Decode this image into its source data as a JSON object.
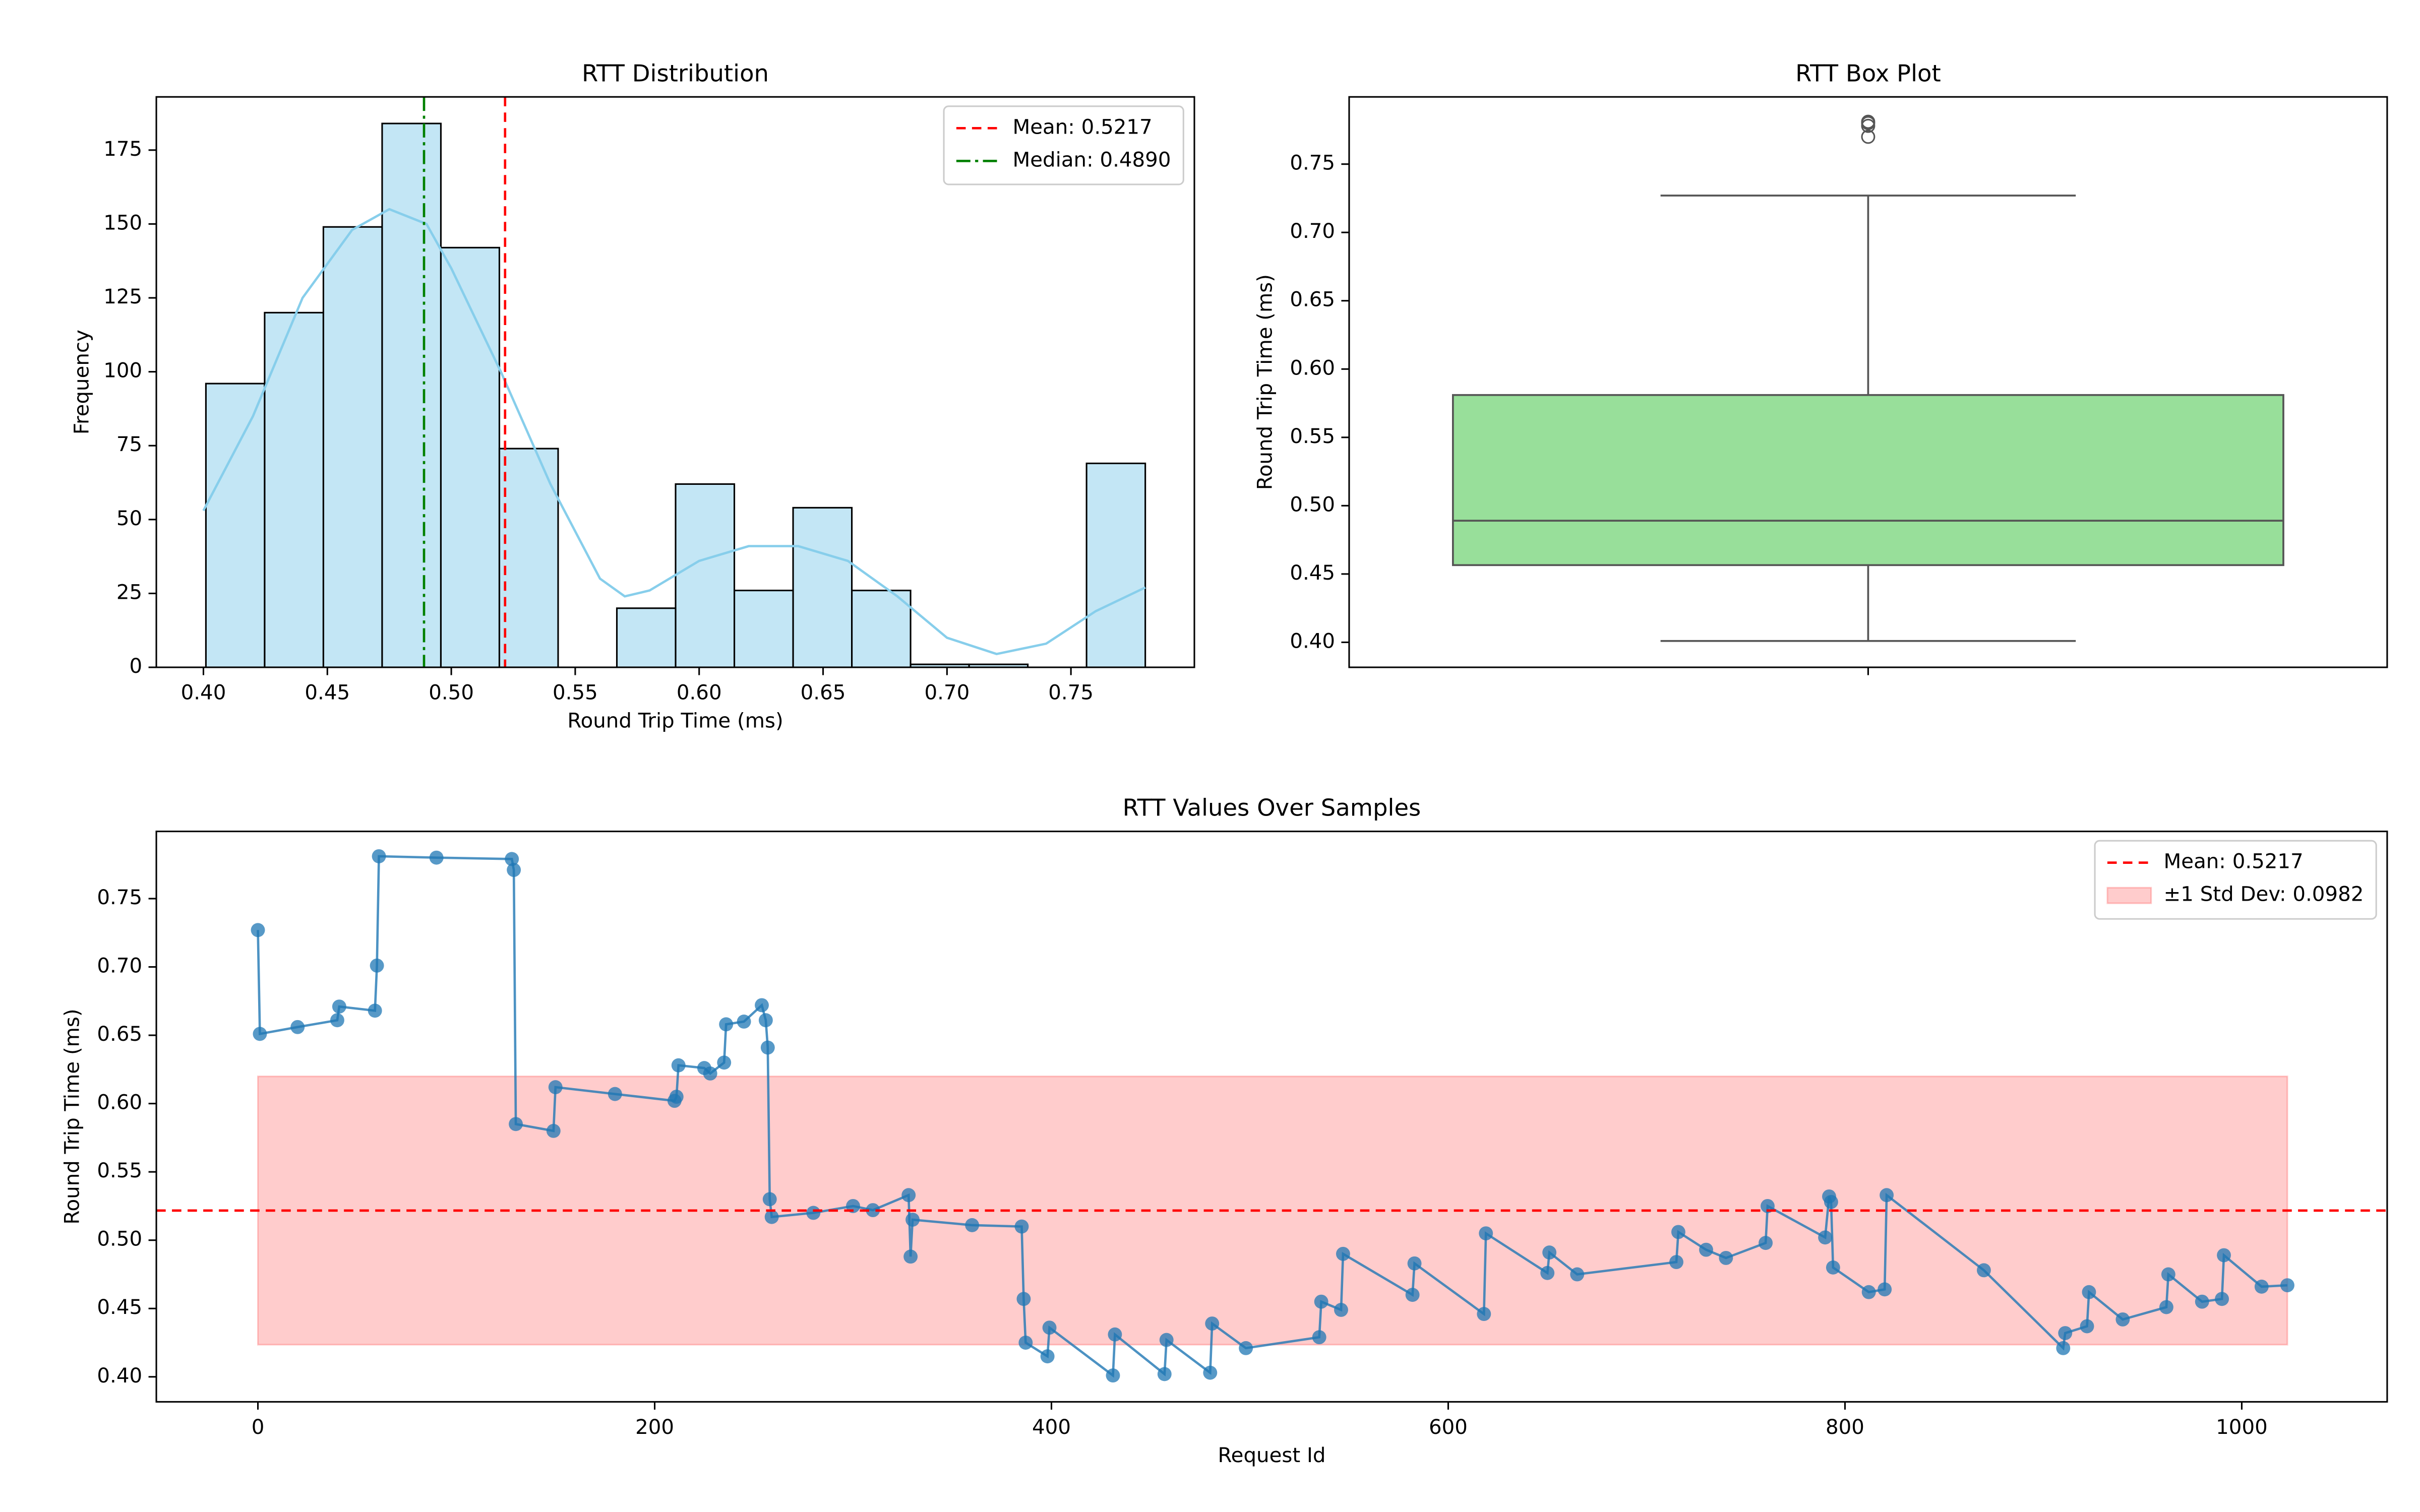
{
  "chart_data": [
    {
      "type": "histogram",
      "title": "RTT Distribution",
      "x_label": "Round Trip Time (ms)",
      "y_label": "Frequency",
      "bins": [
        0.401,
        0.4247,
        0.4484,
        0.4721,
        0.4958,
        0.5194,
        0.5431,
        0.5668,
        0.5905,
        0.6142,
        0.6379,
        0.6616,
        0.6853,
        0.7089,
        0.7326,
        0.7563,
        0.78
      ],
      "counts": [
        96,
        120,
        149,
        184,
        142,
        74,
        0,
        20,
        62,
        26,
        54,
        26,
        1,
        1,
        0,
        69
      ],
      "color": "#87ceeb",
      "kde": {
        "color": "#87ceeb",
        "x": [
          0.4,
          0.42,
          0.44,
          0.46,
          0.475,
          0.49,
          0.5,
          0.52,
          0.54,
          0.56,
          0.57,
          0.58,
          0.6,
          0.62,
          0.64,
          0.66,
          0.68,
          0.7,
          0.72,
          0.74,
          0.76,
          0.78
        ],
        "values": [
          53,
          85,
          125,
          148,
          155,
          150,
          135,
          100,
          62,
          30,
          24,
          26,
          36,
          41,
          41,
          36,
          24,
          10,
          4.5,
          8,
          19,
          27
        ]
      },
      "lines": [
        {
          "name": "Mean: 0.5217",
          "value": 0.5217,
          "color": "#ff0000",
          "style": "dashed"
        },
        {
          "name": "Median: 0.4890",
          "value": 0.489,
          "color": "#008000",
          "style": "dashdot"
        }
      ],
      "legend": "upper right",
      "xlim": [
        0.381,
        0.7998
      ],
      "ylim": [
        0,
        193
      ],
      "xticks": [
        {
          "value": 0.4,
          "label": "0.40"
        },
        {
          "value": 0.45,
          "label": "0.45"
        },
        {
          "value": 0.5,
          "label": "0.50"
        },
        {
          "value": 0.55,
          "label": "0.55"
        },
        {
          "value": 0.6,
          "label": "0.60"
        },
        {
          "value": 0.65,
          "label": "0.65"
        },
        {
          "value": 0.7,
          "label": "0.70"
        },
        {
          "value": 0.75,
          "label": "0.75"
        }
      ],
      "yticks": [
        0,
        25,
        50,
        75,
        100,
        125,
        150,
        175
      ]
    },
    {
      "type": "box",
      "title": "RTT Box Plot",
      "y_label": "Round Trip Time (ms)",
      "whisker_low": 0.401,
      "q1": 0.4565,
      "median": 0.489,
      "q3": 0.581,
      "whisker_high": 0.727,
      "outliers": [
        0.77,
        0.778,
        0.78,
        0.781
      ],
      "color": "#98df9a",
      "ylim": [
        0.3817,
        0.7992
      ],
      "yticks": [
        {
          "value": 0.4,
          "label": "0.40"
        },
        {
          "value": 0.45,
          "label": "0.45"
        },
        {
          "value": 0.5,
          "label": "0.50"
        },
        {
          "value": 0.55,
          "label": "0.55"
        },
        {
          "value": 0.6,
          "label": "0.60"
        },
        {
          "value": 0.65,
          "label": "0.65"
        },
        {
          "value": 0.7,
          "label": "0.70"
        },
        {
          "value": 0.75,
          "label": "0.75"
        }
      ]
    },
    {
      "type": "line",
      "title": "RTT Values Over Samples",
      "x_label": "Request Id",
      "y_label": "Round Trip Time (ms)",
      "x": [
        0,
        1,
        20,
        40,
        41,
        59,
        60,
        61,
        90,
        128,
        129,
        130,
        149,
        150,
        180,
        210,
        211,
        212,
        225,
        228,
        235,
        236,
        245,
        254,
        256,
        257,
        258,
        259,
        280,
        300,
        310,
        328,
        329,
        330,
        360,
        385,
        386,
        387,
        398,
        399,
        431,
        432,
        457,
        458,
        480,
        481,
        498,
        535,
        536,
        546,
        547,
        582,
        583,
        618,
        619,
        650,
        651,
        665,
        715,
        716,
        730,
        740,
        760,
        761,
        790,
        792,
        793,
        794,
        812,
        820,
        821,
        870,
        910,
        911,
        922,
        923,
        940,
        962,
        963,
        980,
        990,
        991,
        1010,
        1023
      ],
      "values": [
        0.727,
        0.651,
        0.656,
        0.661,
        0.671,
        0.668,
        0.701,
        0.781,
        0.78,
        0.779,
        0.771,
        0.585,
        0.58,
        0.612,
        0.607,
        0.602,
        0.605,
        0.628,
        0.626,
        0.622,
        0.63,
        0.658,
        0.66,
        0.672,
        0.661,
        0.641,
        0.53,
        0.517,
        0.52,
        0.525,
        0.522,
        0.533,
        0.488,
        0.515,
        0.511,
        0.51,
        0.457,
        0.425,
        0.415,
        0.436,
        0.401,
        0.431,
        0.402,
        0.427,
        0.403,
        0.439,
        0.421,
        0.429,
        0.455,
        0.449,
        0.49,
        0.46,
        0.483,
        0.446,
        0.505,
        0.476,
        0.491,
        0.475,
        0.484,
        0.506,
        0.493,
        0.487,
        0.498,
        0.525,
        0.502,
        0.532,
        0.528,
        0.48,
        0.462,
        0.464,
        0.533,
        0.478,
        0.421,
        0.432,
        0.437,
        0.462,
        0.442,
        0.451,
        0.475,
        0.455,
        0.457,
        0.489,
        0.466,
        0.467
      ],
      "color": "#1f77b4",
      "hlines": [
        {
          "name": "Mean: 0.5217",
          "value": 0.5217,
          "color": "#ff0000",
          "style": "dashed"
        }
      ],
      "band": {
        "name": "±1 Std Dev: 0.0982",
        "low": 0.4235,
        "high": 0.6199,
        "x": [
          0,
          1023
        ],
        "color": "#ff0000"
      },
      "legend": "upper right",
      "xlim": [
        -51.2,
        1073.3
      ],
      "ylim": [
        0.3817,
        0.7992
      ],
      "xticks": [
        0,
        200,
        400,
        600,
        800,
        1000
      ],
      "yticks": [
        {
          "value": 0.4,
          "label": "0.40"
        },
        {
          "value": 0.45,
          "label": "0.45"
        },
        {
          "value": 0.5,
          "label": "0.50"
        },
        {
          "value": 0.55,
          "label": "0.55"
        },
        {
          "value": 0.6,
          "label": "0.60"
        },
        {
          "value": 0.65,
          "label": "0.65"
        },
        {
          "value": 0.7,
          "label": "0.70"
        },
        {
          "value": 0.75,
          "label": "0.75"
        }
      ]
    }
  ]
}
